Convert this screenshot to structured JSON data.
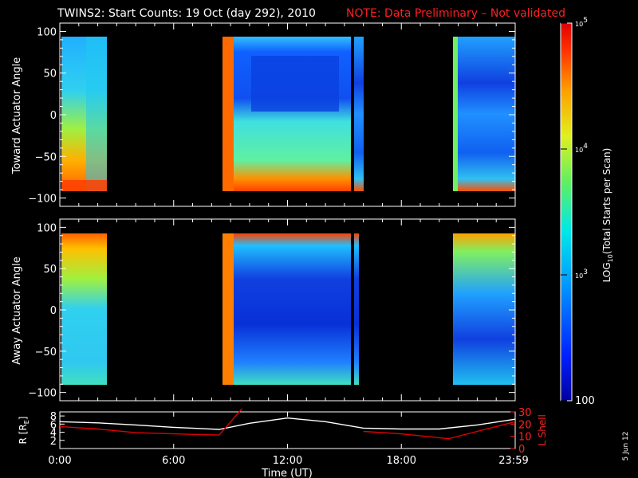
{
  "title": "TWINS2: Start Counts: 19 Oct (day 292), 2010",
  "note": "NOTE: Data Preliminary – Not validated",
  "side_stamp": "5 Jun 12",
  "colors": {
    "note": "#ff2020",
    "r_line": "#ffffff",
    "l_line": "#e00000",
    "gap": "#000000"
  },
  "colorbar": {
    "label": "LOG10(Total Starts per Scan)",
    "ticks": [
      {
        "label": "10^5",
        "value": 100000
      },
      {
        "label": "10^4",
        "value": 10000
      },
      {
        "label": "10^3",
        "value": 1000
      },
      {
        "label": "100",
        "value": 100
      }
    ],
    "range": [
      100,
      100000
    ],
    "scale": "log",
    "colormap": "rainbow"
  },
  "panels": [
    {
      "ylabel": "Toward Actuator Angle",
      "yticks": [
        "100",
        "50",
        "0",
        "−50",
        "−100"
      ]
    },
    {
      "ylabel": "Away Actuator Angle",
      "yticks": [
        "100",
        "50",
        "0",
        "−50",
        "−100"
      ]
    }
  ],
  "orbit_panel": {
    "left_label": "R [R",
    "left_label_sub": "E",
    "left_label_end": "]",
    "left_ticks": [
      "8",
      "6",
      "4",
      "2"
    ],
    "right_label": "L Shell",
    "right_ticks": [
      "30",
      "20",
      "10",
      "0"
    ]
  },
  "xaxis": {
    "label": "Time (UT)",
    "ticks": [
      "0:00",
      "6:00",
      "12:00",
      "18:00",
      "23:59"
    ]
  },
  "chart_data": [
    {
      "type": "heatmap",
      "title": "TWINS2: Start Counts: 19 Oct (day 292), 2010",
      "xlabel": "Time (UT)",
      "ylabel": "Toward Actuator Angle",
      "xlim": [
        0,
        24
      ],
      "ylim": [
        -110,
        110
      ],
      "zscale": "log",
      "zlim": [
        100,
        100000
      ],
      "data_intervals_hours": [
        [
          0.2,
          2.4
        ],
        [
          8.4,
          16.1
        ],
        [
          21.0,
          24.0
        ]
      ],
      "angle_range": [
        -90,
        90
      ]
    },
    {
      "type": "heatmap",
      "xlabel": "Time (UT)",
      "ylabel": "Away Actuator Angle",
      "xlim": [
        0,
        24
      ],
      "ylim": [
        -110,
        110
      ],
      "zscale": "log",
      "zlim": [
        100,
        100000
      ],
      "data_intervals_hours": [
        [
          0.2,
          2.4
        ],
        [
          8.4,
          15.9
        ],
        [
          21.0,
          24.0
        ]
      ],
      "angle_range": [
        -90,
        90
      ]
    },
    {
      "type": "line",
      "xlabel": "Time (UT)",
      "xlim": [
        0,
        24
      ],
      "series": [
        {
          "name": "R",
          "axis": "left",
          "ylim": [
            0,
            9
          ],
          "x": [
            0,
            2,
            4,
            6,
            8.4,
            10,
            12,
            14,
            16,
            18,
            20,
            22,
            24
          ],
          "y": [
            6.6,
            6.3,
            5.8,
            5.2,
            4.7,
            6.2,
            7.5,
            6.6,
            5.0,
            4.8,
            4.8,
            5.8,
            7.2
          ]
        },
        {
          "name": "L Shell",
          "axis": "right",
          "ylim": [
            0,
            30
          ],
          "x": [
            0,
            2,
            4,
            6,
            8.4,
            9.6,
            15.0,
            16.0,
            18,
            20.5,
            22,
            24
          ],
          "y": [
            18,
            16,
            13,
            12,
            11,
            33,
            33,
            14,
            12,
            8,
            14,
            22
          ]
        }
      ]
    }
  ]
}
